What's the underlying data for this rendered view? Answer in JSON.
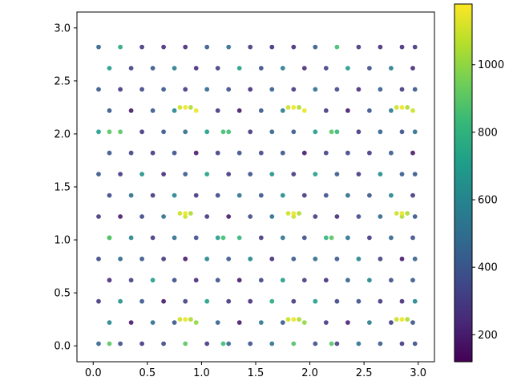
{
  "chart_data": {
    "type": "scatter",
    "title": "",
    "xlabel": "",
    "ylabel": "",
    "xlim": [
      -0.15,
      3.15
    ],
    "ylim": [
      -0.15,
      3.15
    ],
    "x_ticks": [
      0.0,
      0.5,
      1.0,
      1.5,
      2.0,
      2.5,
      3.0
    ],
    "x_tick_labels": [
      "0.0",
      "0.5",
      "1.0",
      "1.5",
      "2.0",
      "2.5",
      "3.0"
    ],
    "y_ticks": [
      0.0,
      0.5,
      1.0,
      1.5,
      2.0,
      2.5,
      3.0
    ],
    "y_tick_labels": [
      "0.0",
      "0.5",
      "1.0",
      "1.5",
      "2.0",
      "2.5",
      "3.0"
    ],
    "grid": false,
    "colormap": "viridis",
    "color_range": [
      120,
      1180
    ],
    "colorbar_ticks": [
      200,
      400,
      600,
      800,
      1000
    ],
    "colorbar_tick_labels": [
      "200",
      "400",
      "600",
      "800",
      "1000"
    ],
    "colors": {
      "viridis": [
        "#440154",
        "#482878",
        "#3e4989",
        "#31688e",
        "#26828e",
        "#1f9e89",
        "#35b779",
        "#6ece58",
        "#b5de2b",
        "#fde725"
      ]
    },
    "x": [
      0.05,
      0.25,
      0.45,
      0.65,
      0.85,
      1.05,
      1.25,
      1.45,
      1.65,
      1.85,
      2.05,
      2.25,
      2.45,
      2.65,
      2.85,
      2.97,
      0.15,
      0.35,
      0.55,
      0.75,
      0.95,
      1.15,
      1.35,
      1.55,
      1.75,
      1.95,
      2.15,
      2.35,
      2.55,
      2.75,
      2.95,
      0.05,
      0.25,
      0.45,
      0.65,
      0.85,
      1.05,
      1.25,
      1.45,
      1.65,
      1.85,
      2.05,
      2.25,
      2.45,
      2.65,
      2.85,
      2.97,
      0.15,
      0.35,
      0.55,
      0.75,
      0.95,
      1.15,
      1.35,
      1.55,
      1.75,
      1.95,
      2.15,
      2.35,
      2.55,
      2.75,
      2.95,
      0.05,
      0.25,
      0.45,
      0.65,
      0.85,
      1.05,
      1.25,
      1.45,
      1.65,
      1.85,
      2.05,
      2.25,
      2.45,
      2.65,
      2.85,
      2.97,
      0.15,
      0.35,
      0.55,
      0.75,
      0.95,
      1.15,
      1.35,
      1.55,
      1.75,
      1.95,
      2.15,
      2.35,
      2.55,
      2.75,
      2.95,
      0.05,
      0.25,
      0.45,
      0.65,
      0.85,
      1.05,
      1.25,
      1.45,
      1.65,
      1.85,
      2.05,
      2.25,
      2.45,
      2.65,
      2.85,
      2.97,
      0.15,
      0.35,
      0.55,
      0.75,
      0.95,
      1.15,
      1.35,
      1.55,
      1.75,
      1.95,
      2.15,
      2.35,
      2.55,
      2.75,
      2.95,
      0.05,
      0.25,
      0.45,
      0.65,
      0.85,
      1.05,
      1.25,
      1.45,
      1.65,
      1.85,
      2.05,
      2.25,
      2.45,
      2.65,
      2.85,
      2.97,
      0.15,
      0.35,
      0.55,
      0.75,
      0.95,
      1.15,
      1.35,
      1.55,
      1.75,
      1.95,
      2.15,
      2.35,
      2.55,
      2.75,
      2.95,
      0.05,
      0.25,
      0.45,
      0.65,
      0.85,
      1.05,
      1.25,
      1.45,
      1.65,
      1.85,
      2.05,
      2.25,
      2.45,
      2.65,
      2.85,
      2.97,
      0.15,
      0.35,
      0.55,
      0.75,
      0.95,
      1.15,
      1.35,
      1.55,
      1.75,
      1.95,
      2.15,
      2.35,
      2.55,
      2.75,
      2.95,
      0.05,
      0.25,
      0.45,
      0.65,
      0.85,
      1.05,
      1.25,
      1.45,
      1.65,
      1.85,
      2.05,
      2.25,
      2.45,
      2.65,
      2.85,
      2.97,
      0.15,
      0.35,
      0.55,
      0.75,
      0.95,
      1.15,
      1.35,
      1.55,
      1.75,
      1.95,
      2.15,
      2.35,
      2.55,
      2.75,
      2.95,
      0.05,
      0.25,
      0.45,
      0.65,
      0.85,
      1.05,
      1.25,
      1.45,
      1.65,
      1.85,
      2.05,
      2.25,
      2.45,
      2.65,
      2.85,
      2.97,
      0.85,
      0.8,
      0.9,
      1.85,
      1.8,
      1.9,
      2.85,
      2.8,
      2.9,
      0.85,
      0.8,
      0.9,
      1.85,
      1.8,
      1.9,
      2.85,
      2.8,
      2.9,
      0.85,
      0.8,
      0.9,
      1.85,
      1.8,
      1.9,
      2.85,
      2.8,
      2.9,
      0.15,
      1.2,
      2.2,
      0.15,
      1.2,
      2.2,
      0.15,
      1.2,
      2.2
    ],
    "y": [
      0.02,
      0.02,
      0.02,
      0.02,
      0.02,
      0.02,
      0.02,
      0.02,
      0.02,
      0.02,
      0.02,
      0.02,
      0.02,
      0.02,
      0.02,
      0.02,
      0.22,
      0.22,
      0.22,
      0.22,
      0.22,
      0.22,
      0.22,
      0.22,
      0.22,
      0.22,
      0.22,
      0.22,
      0.22,
      0.22,
      0.22,
      0.42,
      0.42,
      0.42,
      0.42,
      0.42,
      0.42,
      0.42,
      0.42,
      0.42,
      0.42,
      0.42,
      0.42,
      0.42,
      0.42,
      0.42,
      0.42,
      0.62,
      0.62,
      0.62,
      0.62,
      0.62,
      0.62,
      0.62,
      0.62,
      0.62,
      0.62,
      0.62,
      0.62,
      0.62,
      0.62,
      0.62,
      0.82,
      0.82,
      0.82,
      0.82,
      0.82,
      0.82,
      0.82,
      0.82,
      0.82,
      0.82,
      0.82,
      0.82,
      0.82,
      0.82,
      0.82,
      0.82,
      1.02,
      1.02,
      1.02,
      1.02,
      1.02,
      1.02,
      1.02,
      1.02,
      1.02,
      1.02,
      1.02,
      1.02,
      1.02,
      1.02,
      1.02,
      1.22,
      1.22,
      1.22,
      1.22,
      1.22,
      1.22,
      1.22,
      1.22,
      1.22,
      1.22,
      1.22,
      1.22,
      1.22,
      1.22,
      1.22,
      1.22,
      1.42,
      1.42,
      1.42,
      1.42,
      1.42,
      1.42,
      1.42,
      1.42,
      1.42,
      1.42,
      1.42,
      1.42,
      1.42,
      1.42,
      1.42,
      1.62,
      1.62,
      1.62,
      1.62,
      1.62,
      1.62,
      1.62,
      1.62,
      1.62,
      1.62,
      1.62,
      1.62,
      1.62,
      1.62,
      1.62,
      1.62,
      1.82,
      1.82,
      1.82,
      1.82,
      1.82,
      1.82,
      1.82,
      1.82,
      1.82,
      1.82,
      1.82,
      1.82,
      1.82,
      1.82,
      1.82,
      2.02,
      2.02,
      2.02,
      2.02,
      2.02,
      2.02,
      2.02,
      2.02,
      2.02,
      2.02,
      2.02,
      2.02,
      2.02,
      2.02,
      2.02,
      2.02,
      2.22,
      2.22,
      2.22,
      2.22,
      2.22,
      2.22,
      2.22,
      2.22,
      2.22,
      2.22,
      2.22,
      2.22,
      2.22,
      2.22,
      2.22,
      2.42,
      2.42,
      2.42,
      2.42,
      2.42,
      2.42,
      2.42,
      2.42,
      2.42,
      2.42,
      2.42,
      2.42,
      2.42,
      2.42,
      2.42,
      2.42,
      2.62,
      2.62,
      2.62,
      2.62,
      2.62,
      2.62,
      2.62,
      2.62,
      2.62,
      2.62,
      2.62,
      2.62,
      2.62,
      2.62,
      2.62,
      2.82,
      2.82,
      2.82,
      2.82,
      2.82,
      2.82,
      2.82,
      2.82,
      2.82,
      2.82,
      2.82,
      2.82,
      2.82,
      2.82,
      2.82,
      2.82,
      0.25,
      0.25,
      0.25,
      0.25,
      0.25,
      0.25,
      0.25,
      0.25,
      0.25,
      1.25,
      1.25,
      1.25,
      1.25,
      1.25,
      1.25,
      1.25,
      1.25,
      1.25,
      2.25,
      2.25,
      2.25,
      2.25,
      2.25,
      2.25,
      2.25,
      2.25,
      2.25,
      0.02,
      0.02,
      0.02,
      1.02,
      1.02,
      1.02,
      2.02,
      2.02,
      2.02
    ],
    "c": [
      460,
      380,
      300,
      350,
      900,
      300,
      480,
      380,
      520,
      880,
      380,
      320,
      520,
      420,
      300,
      380,
      600,
      200,
      500,
      400,
      1000,
      450,
      200,
      550,
      420,
      1000,
      300,
      220,
      560,
      320,
      400,
      300,
      650,
      420,
      200,
      320,
      720,
      300,
      260,
      760,
      300,
      700,
      350,
      380,
      300,
      250,
      600,
      250,
      320,
      700,
      380,
      250,
      380,
      200,
      350,
      700,
      320,
      260,
      450,
      600,
      380,
      420,
      350,
      480,
      400,
      300,
      200,
      600,
      420,
      600,
      260,
      420,
      500,
      420,
      600,
      320,
      200,
      450,
      800,
      600,
      300,
      500,
      380,
      700,
      820,
      300,
      520,
      380,
      800,
      520,
      300,
      460,
      380,
      300,
      200,
      350,
      500,
      1100,
      300,
      200,
      360,
      500,
      1100,
      300,
      250,
      360,
      480,
      1050,
      400,
      350,
      500,
      300,
      600,
      300,
      350,
      520,
      400,
      620,
      300,
      380,
      500,
      400,
      600,
      300,
      400,
      300,
      650,
      250,
      420,
      720,
      300,
      380,
      650,
      300,
      700,
      420,
      300,
      620,
      420,
      400,
      400,
      320,
      300,
      380,
      200,
      320,
      380,
      350,
      380,
      200,
      320,
      350,
      300,
      420,
      200,
      700,
      900,
      300,
      400,
      500,
      700,
      850,
      300,
      460,
      420,
      700,
      820,
      300,
      460,
      380,
      500,
      400,
      200,
      420,
      600,
      1150,
      300,
      200,
      400,
      560,
      1150,
      300,
      200,
      400,
      560,
      1100,
      400,
      300,
      350,
      400,
      300,
      480,
      380,
      260,
      440,
      300,
      500,
      360,
      260,
      440,
      300,
      400,
      700,
      320,
      400,
      560,
      250,
      320,
      720,
      380,
      560,
      250,
      320,
      700,
      380,
      560,
      250,
      450,
      750,
      300,
      260,
      250,
      420,
      500,
      300,
      260,
      250,
      420,
      850,
      300,
      260,
      250,
      300,
      1150,
      1100,
      1050,
      1150,
      1100,
      1050,
      1150,
      1100,
      1050,
      1150,
      1100,
      1050,
      1150,
      1100,
      1050,
      1150,
      1100,
      1050,
      1150,
      1100,
      1050,
      1150,
      1100,
      1050,
      1150,
      1100,
      1050,
      900,
      850,
      900,
      900,
      850,
      900,
      900,
      850,
      900
    ]
  }
}
